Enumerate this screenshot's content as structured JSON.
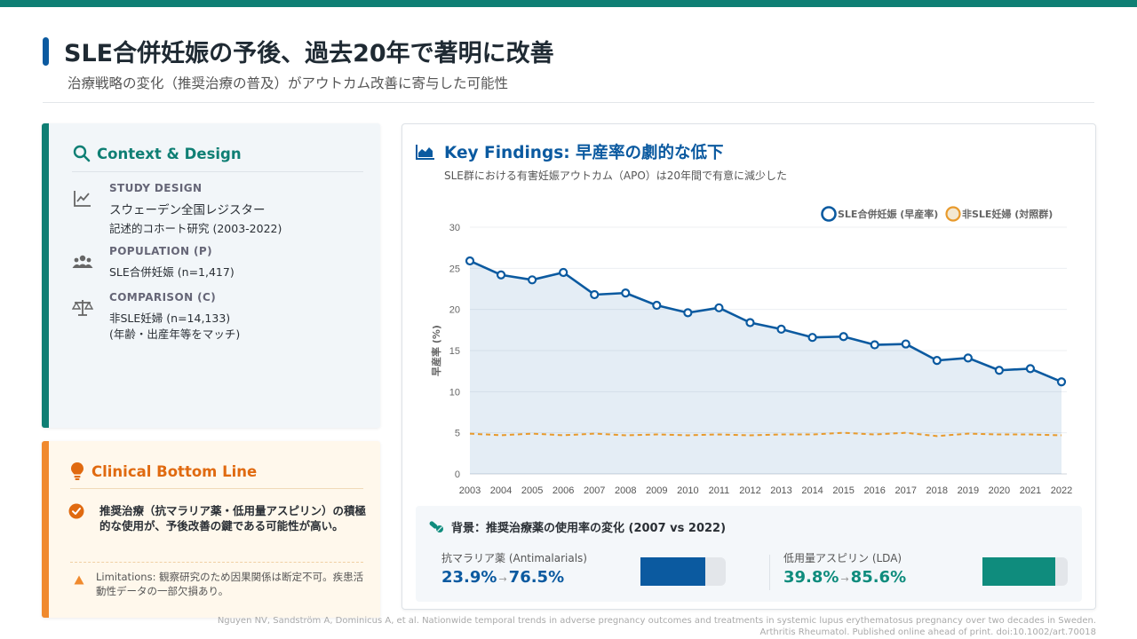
{
  "header": {
    "title": "SLE合併妊娠の予後、過去20年で著明に改善",
    "subtitle": "治療戦略の変化（推奨治療の普及）がアウトカム改善に寄与した可能性"
  },
  "context": {
    "title": "Context & Design",
    "study_design": {
      "label": "STUDY DESIGN",
      "line1": "スウェーデン全国レジスター",
      "line2": "記述的コホート研究 (2003-2022)"
    },
    "population": {
      "label": "POPULATION (P)",
      "line1": "SLE合併妊娠 (n=1,417)"
    },
    "comparison": {
      "label": "COMPARISON (C)",
      "line1": "非SLE妊婦 (n=14,133)",
      "line2": "(年齢・出産年等をマッチ)"
    }
  },
  "bottom_line": {
    "title": "Clinical Bottom Line",
    "main": "推奨治療（抗マラリア薬・低用量アスピリン）の積極的な使用が、予後改善の鍵である可能性が高い。",
    "limitations": "Limitations: 観察研究のため因果関係は断定不可。疾患活動性データの一部欠損あり。"
  },
  "findings": {
    "title": "Key Findings: 早産率の劇的な低下",
    "subtitle": "SLE群における有害妊娠アウトカム（APO）は20年間で有意に減少した"
  },
  "chart_data": {
    "type": "line",
    "x": [
      2003,
      2004,
      2005,
      2006,
      2007,
      2008,
      2009,
      2010,
      2011,
      2012,
      2013,
      2014,
      2015,
      2016,
      2017,
      2018,
      2019,
      2020,
      2021,
      2022
    ],
    "series": [
      {
        "name": "SLE合併妊娠 (早産率)",
        "color": "#0b5aa0",
        "values": [
          25.9,
          24.2,
          23.6,
          24.5,
          21.8,
          22.0,
          20.5,
          19.6,
          20.2,
          18.4,
          17.6,
          16.6,
          16.7,
          15.7,
          15.8,
          13.8,
          14.1,
          12.6,
          12.8,
          11.2
        ]
      },
      {
        "name": "非SLE妊婦 (対照群)",
        "color": "#e89a2c",
        "values": [
          4.9,
          4.7,
          4.9,
          4.7,
          4.9,
          4.7,
          4.8,
          4.7,
          4.8,
          4.7,
          4.8,
          4.8,
          5.0,
          4.8,
          5.0,
          4.6,
          4.9,
          4.8,
          4.8,
          4.7
        ]
      }
    ],
    "ylabel": "早産率 (%)",
    "ylim": [
      0,
      30
    ],
    "yticks": [
      0,
      5,
      10,
      15,
      20,
      25,
      30
    ],
    "grid": true,
    "legend": "top-right"
  },
  "background": {
    "title": "背景：推奨治療薬の使用率の変化 (2007 vs 2022)",
    "drugs": [
      {
        "name": "抗マラリア薬 (Antimalarials)",
        "before": "23.9%",
        "after": "76.5%",
        "value": 76.5,
        "color": "#0b5aa0"
      },
      {
        "name": "低用量アスピリン (LDA)",
        "before": "39.8%",
        "after": "85.6%",
        "value": 85.6,
        "color": "#0f8c7d"
      }
    ],
    "arrow": "→"
  },
  "citation": {
    "line1": "Nguyen NV, Sandström A, Dominicus A, et al. Nationwide temporal trends in adverse pregnancy outcomes and treatments in systemic lupus erythematosus pregnancy over two decades in Sweden.",
    "line2": "Arthritis Rheumatol. Published online ahead of print. doi:10.1002/art.70018"
  }
}
